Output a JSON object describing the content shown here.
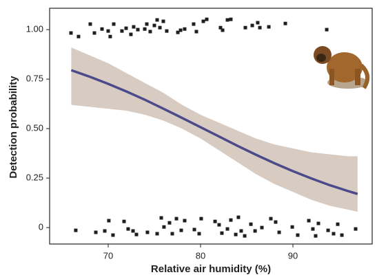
{
  "chart_data": {
    "type": "logistic",
    "xlabel": "Relative air humidity (%)",
    "ylabel": "Detection probability",
    "xlim": [
      63.66,
      98.58
    ],
    "ylim": [
      -0.083,
      1.108
    ],
    "xticks": [
      70,
      80,
      90
    ],
    "yticks": [
      {
        "value": 1,
        "label": "1.00"
      },
      {
        "value": 0.75,
        "label": "0.75"
      },
      {
        "value": 0.5,
        "label": "0.50"
      },
      {
        "value": 0.25,
        "label": "0.25"
      },
      0
    ],
    "fit": {
      "color": "#4b4a8a",
      "x": [
        66,
        68,
        70,
        72,
        74,
        76,
        78,
        80,
        82,
        84,
        86,
        88,
        90,
        92,
        94,
        96,
        97
      ],
      "values": [
        0.795,
        0.762,
        0.726,
        0.687,
        0.645,
        0.6,
        0.554,
        0.507,
        0.46,
        0.413,
        0.368,
        0.325,
        0.285,
        0.248,
        0.214,
        0.184,
        0.17
      ]
    },
    "band": {
      "color": "#d8cbc2",
      "x": [
        66,
        68,
        70,
        72,
        74,
        76,
        78,
        80,
        82,
        84,
        86,
        88,
        90,
        92,
        94,
        96,
        97
      ],
      "upper": [
        0.91,
        0.87,
        0.83,
        0.78,
        0.73,
        0.68,
        0.62,
        0.57,
        0.53,
        0.49,
        0.45,
        0.42,
        0.4,
        0.38,
        0.37,
        0.36,
        0.36
      ],
      "lower": [
        0.62,
        0.61,
        0.6,
        0.59,
        0.57,
        0.54,
        0.5,
        0.45,
        0.39,
        0.33,
        0.27,
        0.22,
        0.18,
        0.14,
        0.11,
        0.09,
        0.08
      ]
    },
    "points": {
      "color": "#1e1e1e",
      "x": [
        65.97,
        66.79,
        68.06,
        68.51,
        69.33,
        70,
        70.22,
        70.6,
        71.49,
        71.94,
        72.46,
        72.76,
        73.21,
        73.96,
        74.18,
        74.55,
        75,
        75.3,
        75.6,
        75.97,
        76.34,
        77.54,
        77.84,
        78.28,
        79.25,
        79.55,
        80.3,
        80.67,
        82.16,
        82.39,
        82.91,
        83.28,
        84.85,
        85.6,
        86.19,
        86.42,
        87.39,
        89.18,
        93.66,
        66.49,
        68.66,
        69.63,
        70.07,
        70.52,
        71.72,
        72.16,
        72.69,
        73.06,
        74.25,
        75.3,
        75.75,
        76.04,
        76.64,
        76.94,
        77.39,
        77.91,
        78.28,
        79.33,
        79.85,
        80.07,
        81.57,
        82.01,
        82.31,
        82.91,
        83.28,
        83.81,
        84.1,
        84.4,
        84.78,
        85.45,
        85.9,
        86.64,
        87.61,
        88.13,
        88.51,
        89.93,
        90.52,
        91.72,
        92.16,
        92.46,
        92.76,
        93.81,
        94.4,
        94.85,
        95.3,
        96.79
      ],
      "y": [
        0.983,
        0.965,
        1.028,
        0.983,
        1.003,
        0.993,
        0.965,
        1.028,
        0.993,
        1.007,
        0.976,
        1.014,
        1.0,
        1.003,
        1.028,
        0.99,
        1.021,
        1.049,
        1.01,
        1.042,
        0.993,
        0.986,
        0.997,
        1.003,
        1.028,
        0.99,
        1.042,
        1.052,
        1.01,
        0.997,
        1.049,
        1.052,
        1.01,
        1.021,
        1.035,
        1.01,
        1.014,
        1.031,
        1.0,
        -0.014,
        -0.024,
        -0.017,
        0.035,
        -0.038,
        0.031,
        -0.007,
        -0.017,
        -0.035,
        -0.024,
        -0.031,
        0.049,
        0.003,
        0.024,
        -0.031,
        0.045,
        -0.014,
        0.035,
        -0.01,
        -0.031,
        0.045,
        0.031,
        0.014,
        -0.028,
        -0.007,
        0.038,
        -0.035,
        0.052,
        -0.017,
        -0.042,
        0.017,
        -0.017,
        0.0,
        0.045,
        0.028,
        -0.024,
        0.003,
        -0.038,
        0.035,
        -0.007,
        -0.042,
        0.021,
        -0.014,
        -0.031,
        0.017,
        -0.038,
        -0.007
      ]
    }
  }
}
